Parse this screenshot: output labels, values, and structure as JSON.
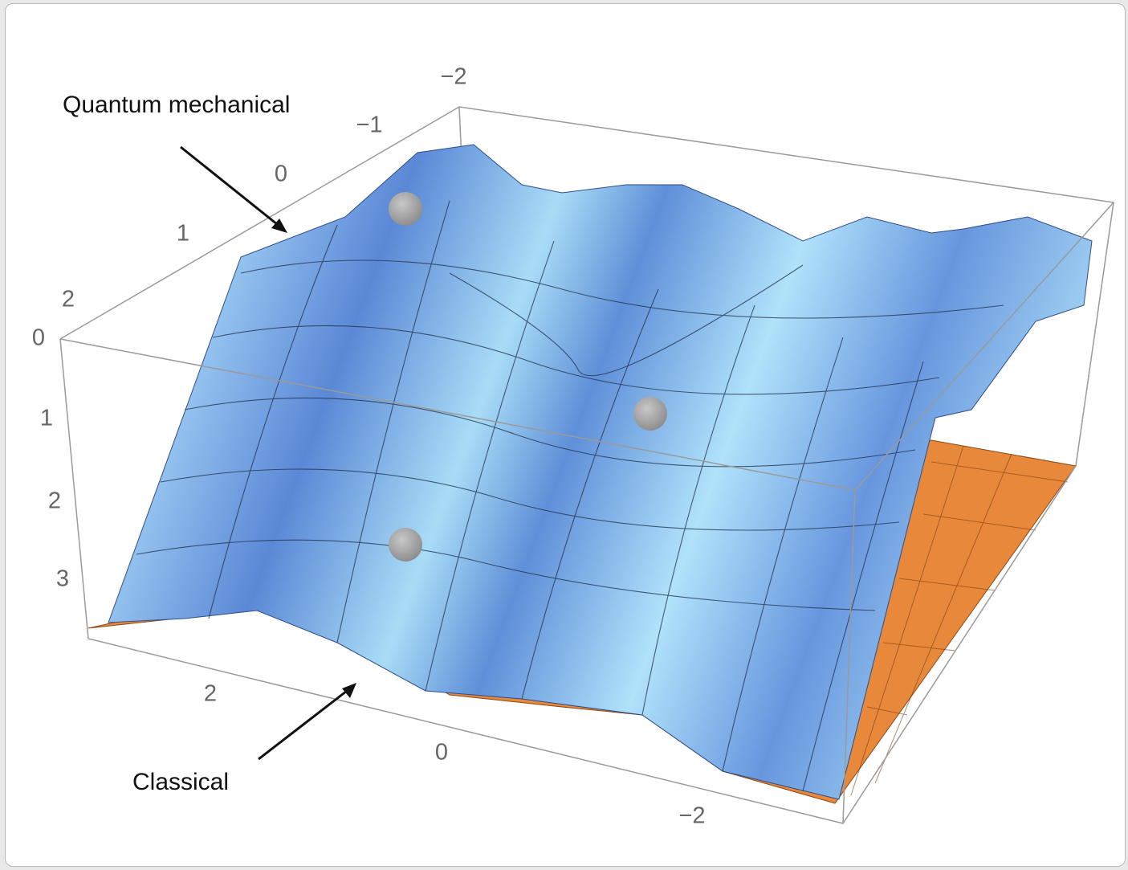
{
  "annotations": {
    "quantum": "Quantum mechanical",
    "classical": "Classical"
  },
  "axes": {
    "vertical": [
      "0",
      "1",
      "2",
      "3"
    ],
    "depth": [
      "−2",
      "−1",
      "0",
      "1",
      "2"
    ],
    "front": [
      "2",
      "0",
      "−2"
    ]
  }
}
